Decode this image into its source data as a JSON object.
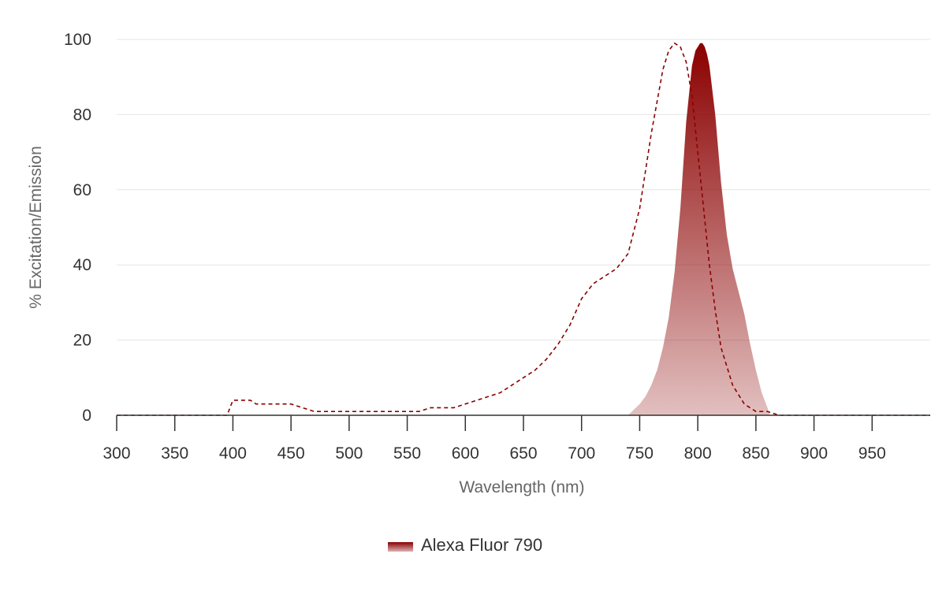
{
  "chart_data": {
    "type": "area",
    "title": "",
    "xlabel": "Wavelength (nm)",
    "ylabel": "% Excitation/Emission",
    "xlim": [
      300,
      1000
    ],
    "ylim": [
      0,
      100
    ],
    "xticks": [
      300,
      350,
      400,
      450,
      500,
      550,
      600,
      650,
      700,
      750,
      800,
      850,
      900,
      950
    ],
    "yticks": [
      0,
      20,
      40,
      60,
      80,
      100
    ],
    "grid": true,
    "legend_placement": "bottom-center",
    "colors": {
      "excitation": "#8b0000",
      "emission_top": "#8b0000",
      "emission_bottom": "#e8b3b3"
    },
    "series": [
      {
        "name": "Alexa Fluor 790",
        "kind": "excitation",
        "style": "dashed-line",
        "x": [
          300,
          390,
          395,
          400,
          415,
          420,
          450,
          460,
          470,
          560,
          570,
          590,
          600,
          610,
          620,
          630,
          640,
          650,
          660,
          670,
          680,
          690,
          700,
          710,
          720,
          730,
          740,
          750,
          760,
          770,
          775,
          780,
          785,
          790,
          795,
          800,
          805,
          810,
          815,
          820,
          830,
          840,
          850,
          860,
          870,
          880,
          900,
          1000
        ],
        "values": [
          0,
          0,
          0,
          4,
          4,
          3,
          3,
          2,
          1,
          1,
          2,
          2,
          3,
          4,
          5,
          6,
          8,
          10,
          12,
          15,
          19,
          24,
          31,
          35,
          37,
          39,
          43,
          55,
          75,
          92,
          97,
          99,
          98,
          94,
          85,
          70,
          55,
          40,
          28,
          18,
          8,
          3,
          1,
          1,
          0,
          0,
          0,
          0
        ]
      },
      {
        "name": "Alexa Fluor 790",
        "kind": "emission",
        "style": "gradient-area",
        "x": [
          740,
          750,
          755,
          760,
          765,
          770,
          775,
          780,
          785,
          790,
          795,
          798,
          800,
          802,
          804,
          806,
          808,
          810,
          815,
          820,
          825,
          830,
          835,
          840,
          845,
          850,
          855,
          860,
          862
        ],
        "values": [
          0,
          3,
          5,
          8,
          12,
          18,
          26,
          38,
          55,
          78,
          93,
          97,
          98,
          99,
          99,
          98,
          96,
          93,
          80,
          62,
          48,
          39,
          33,
          27,
          19,
          12,
          6,
          2,
          0
        ]
      }
    ],
    "legend": [
      {
        "label": "Alexa Fluor 790"
      }
    ]
  }
}
